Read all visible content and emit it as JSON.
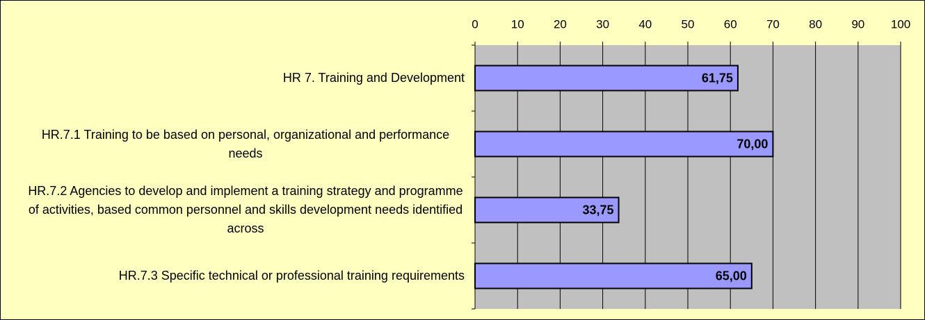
{
  "chart_data": {
    "type": "barh",
    "categories": [
      "HR 7. Training and Development",
      "HR.7.1 Training to be based on personal, organizational and performance needs",
      "HR.7.2 Agencies to develop and implement a training strategy and programme of activities, based common personnel and skills development needs identified across",
      "HR.7.3 Specific technical or professional training requirements"
    ],
    "values": [
      61.75,
      70,
      33.75,
      65
    ],
    "value_labels": [
      "61,75",
      "70,00",
      "33,75",
      "65,00"
    ],
    "color": "#9999ff",
    "xlim": [
      0,
      100
    ],
    "xticks": [
      0,
      10,
      20,
      30,
      40,
      50,
      60,
      70,
      80,
      90,
      100
    ],
    "grid": true
  }
}
